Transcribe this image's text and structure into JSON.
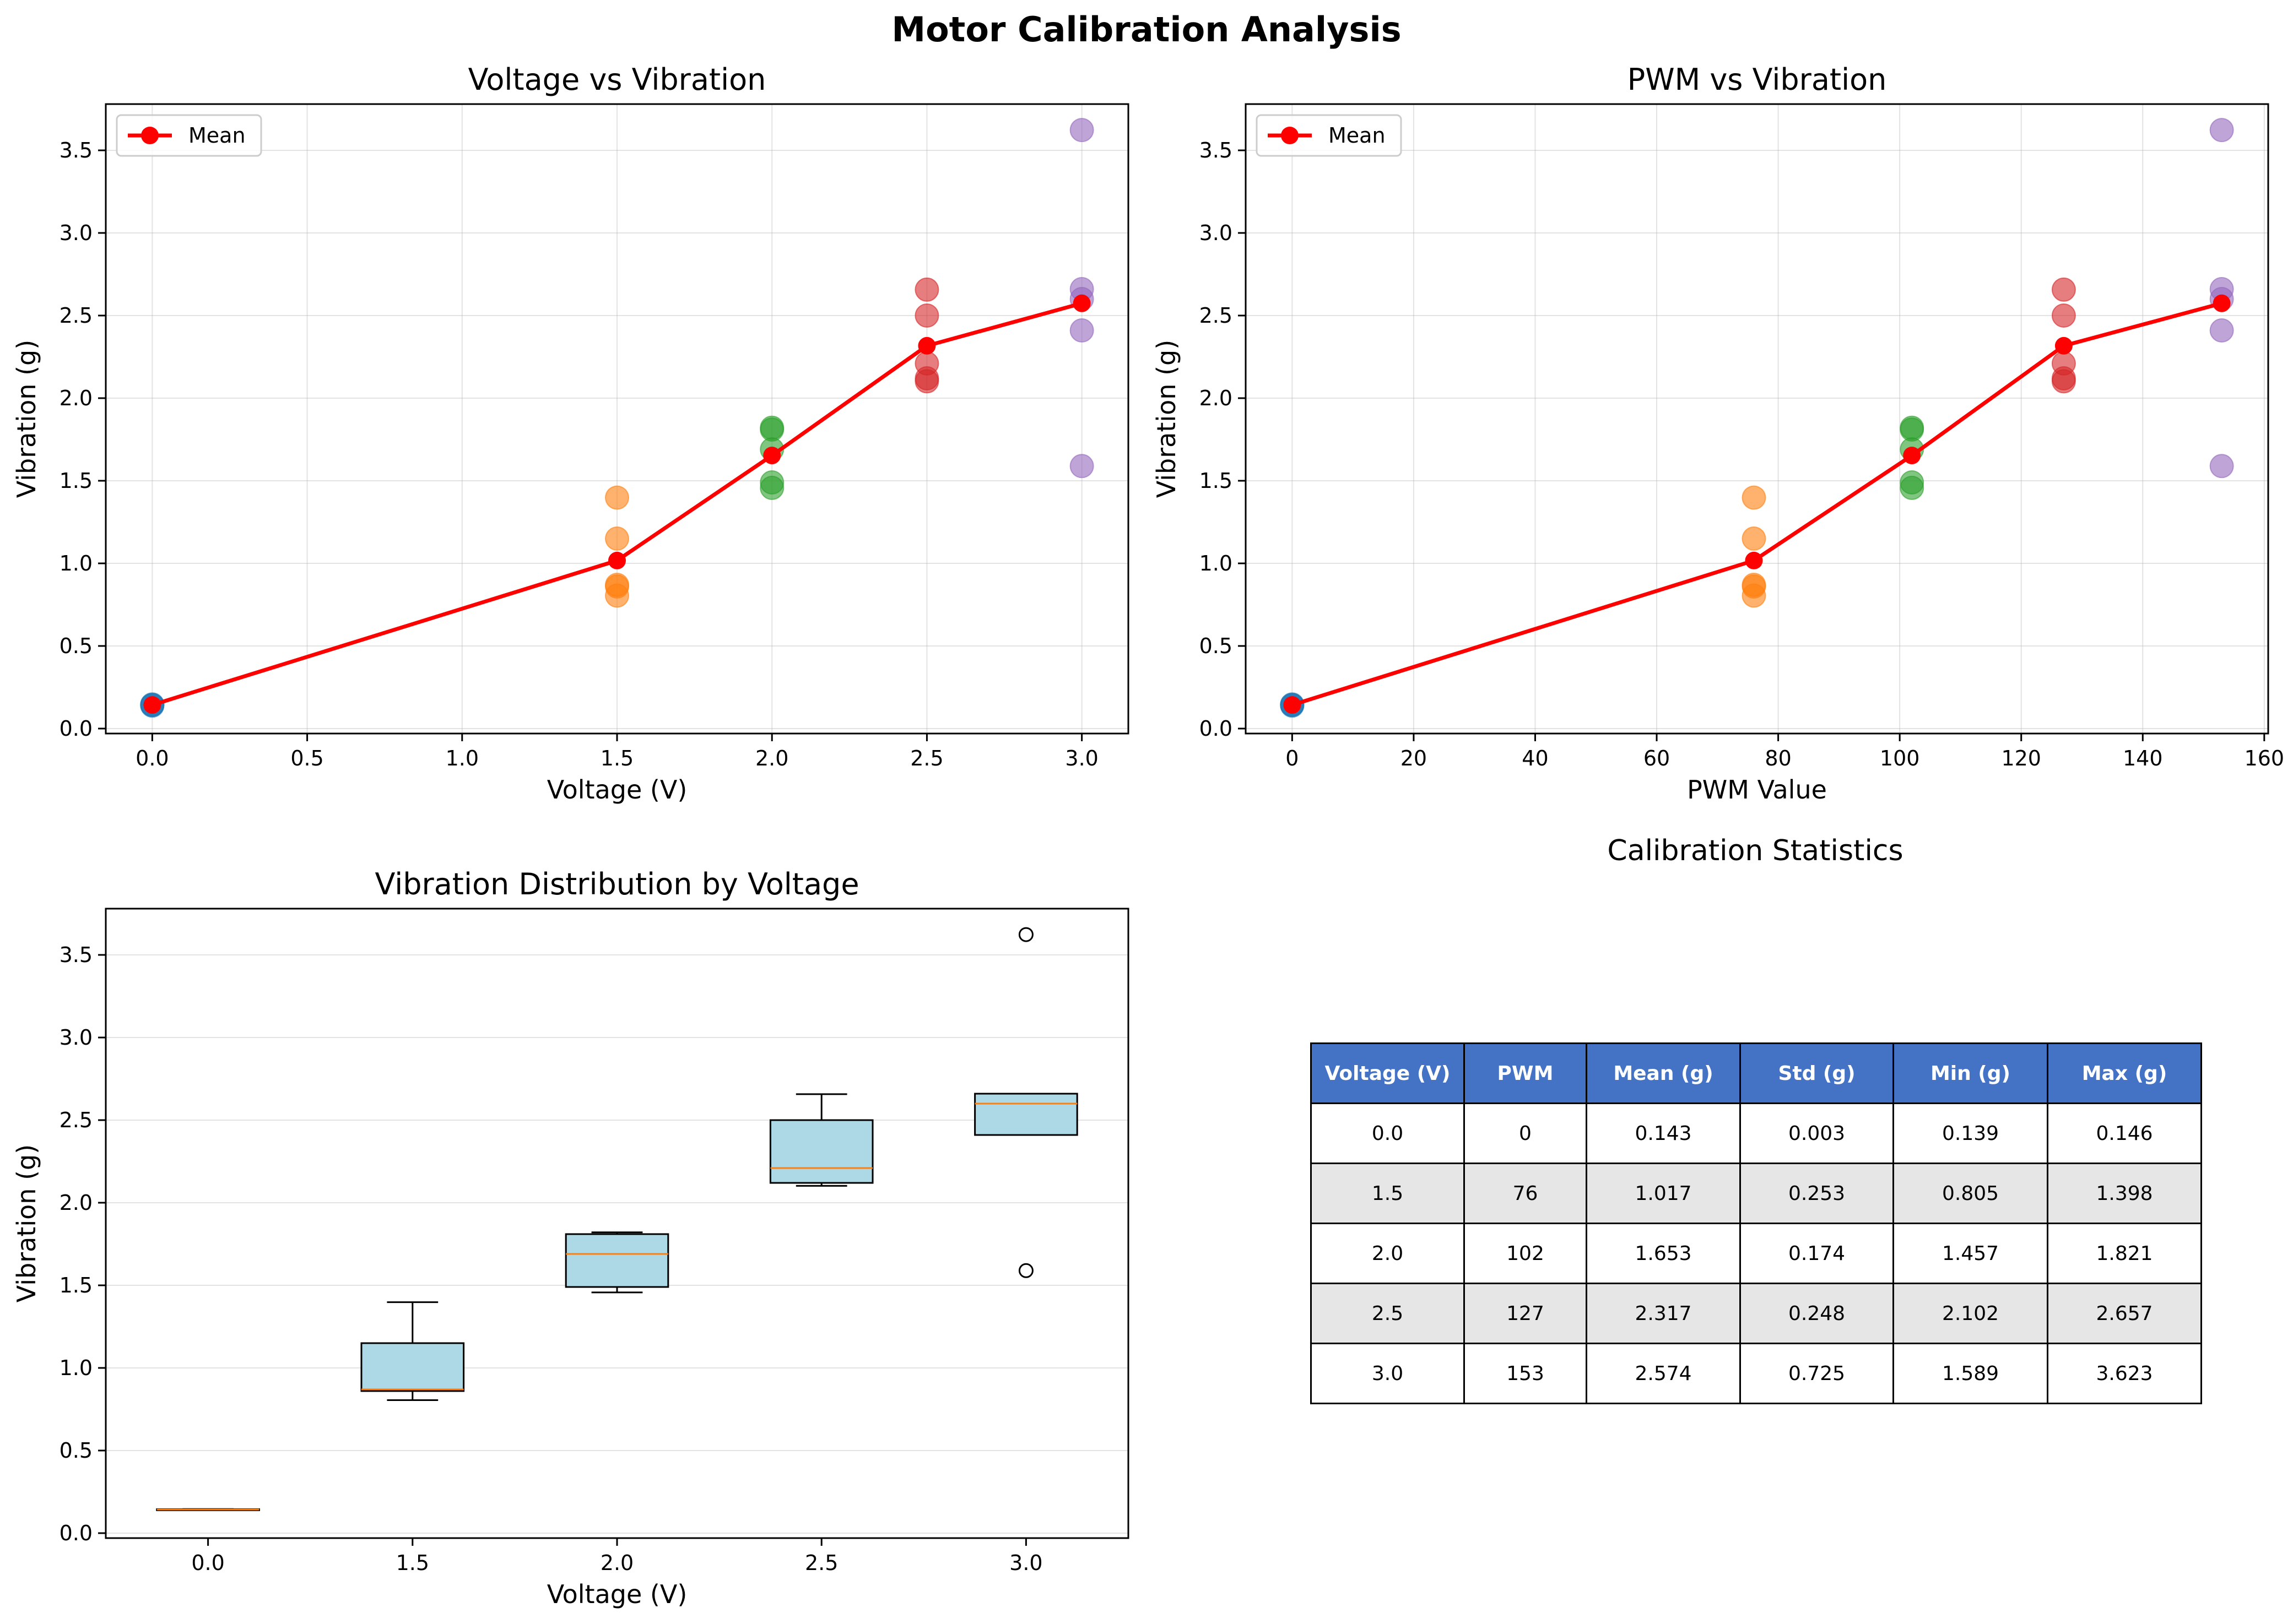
{
  "suptitle": "Motor Calibration Analysis",
  "colors": {
    "v0": "#1f77b4",
    "v1.5": "#ff7f0e",
    "v2": "#2ca02c",
    "v2.5": "#d62728",
    "v3": "#9467bd",
    "mean": "#ff0000",
    "box_fill": "#add8e6",
    "median": "#ff7f0e",
    "header_bg": "#4472c4"
  },
  "chart_data": [
    {
      "type": "scatter",
      "title": "Voltage vs Vibration",
      "xlabel": "Voltage (V)",
      "ylabel": "Vibration (g)",
      "xlim": [
        -0.15,
        3.15
      ],
      "ylim": [
        -0.03,
        3.78
      ],
      "xticks": [
        "0.0",
        "0.5",
        "1.0",
        "1.5",
        "2.0",
        "2.5",
        "3.0"
      ],
      "xtick_values": [
        0,
        0.5,
        1,
        1.5,
        2,
        2.5,
        3
      ],
      "yticks": [
        "0.0",
        "0.5",
        "1.0",
        "1.5",
        "2.0",
        "2.5",
        "3.0",
        "3.5"
      ],
      "ytick_values": [
        0,
        0.5,
        1,
        1.5,
        2,
        2.5,
        3,
        3.5
      ],
      "grid": true,
      "legend": {
        "position": "upper-left",
        "entries": [
          "Mean"
        ]
      },
      "series": [
        {
          "x": 0,
          "values": [
            0.139,
            0.143,
            0.146
          ]
        },
        {
          "x": 1.5,
          "values": [
            0.805,
            0.86,
            0.87,
            1.15,
            1.398
          ]
        },
        {
          "x": 2,
          "values": [
            1.457,
            1.49,
            1.69,
            1.81,
            1.821
          ]
        },
        {
          "x": 2.5,
          "values": [
            2.102,
            2.12,
            2.21,
            2.5,
            2.657
          ]
        },
        {
          "x": 3,
          "values": [
            1.589,
            2.41,
            2.6,
            2.66,
            3.623
          ]
        }
      ],
      "mean_line": {
        "name": "Mean",
        "x": [
          0,
          1.5,
          2,
          2.5,
          3
        ],
        "y": [
          0.143,
          1.017,
          1.653,
          2.317,
          2.574
        ]
      }
    },
    {
      "type": "scatter",
      "title": "PWM vs Vibration",
      "xlabel": "PWM Value",
      "ylabel": "Vibration (g)",
      "xlim": [
        -7.65,
        160.65
      ],
      "ylim": [
        -0.03,
        3.78
      ],
      "xticks": [
        "0",
        "20",
        "40",
        "60",
        "80",
        "100",
        "120",
        "140",
        "160"
      ],
      "xtick_values": [
        0,
        20,
        40,
        60,
        80,
        100,
        120,
        140,
        160
      ],
      "yticks": [
        "0.0",
        "0.5",
        "1.0",
        "1.5",
        "2.0",
        "2.5",
        "3.0",
        "3.5"
      ],
      "ytick_values": [
        0,
        0.5,
        1,
        1.5,
        2,
        2.5,
        3,
        3.5
      ],
      "grid": true,
      "legend": {
        "position": "upper-left",
        "entries": [
          "Mean"
        ]
      },
      "series": [
        {
          "x": 0,
          "values": [
            0.139,
            0.143,
            0.146
          ]
        },
        {
          "x": 76,
          "values": [
            0.805,
            0.86,
            0.87,
            1.15,
            1.398
          ]
        },
        {
          "x": 102,
          "values": [
            1.457,
            1.49,
            1.69,
            1.81,
            1.821
          ]
        },
        {
          "x": 127,
          "values": [
            2.102,
            2.12,
            2.21,
            2.5,
            2.657
          ]
        },
        {
          "x": 153,
          "values": [
            1.589,
            2.41,
            2.6,
            2.66,
            3.623
          ]
        }
      ],
      "mean_line": {
        "name": "Mean",
        "x": [
          0,
          76,
          102,
          127,
          153
        ],
        "y": [
          0.143,
          1.017,
          1.653,
          2.317,
          2.574
        ]
      }
    },
    {
      "type": "box",
      "title": "Vibration Distribution by Voltage",
      "xlabel": "Voltage (V)",
      "ylabel": "Vibration (g)",
      "ylim": [
        -0.03,
        3.78
      ],
      "categories": [
        "0.0",
        "1.5",
        "2.0",
        "2.5",
        "3.0"
      ],
      "yticks": [
        "0.0",
        "0.5",
        "1.0",
        "1.5",
        "2.0",
        "2.5",
        "3.0",
        "3.5"
      ],
      "ytick_values": [
        0,
        0.5,
        1,
        1.5,
        2,
        2.5,
        3,
        3.5
      ],
      "grid": "y",
      "boxes": [
        {
          "whisker_low": 0.139,
          "q1": 0.141,
          "median": 0.143,
          "q3": 0.145,
          "whisker_high": 0.146,
          "outliers": []
        },
        {
          "whisker_low": 0.805,
          "q1": 0.86,
          "median": 0.87,
          "q3": 1.15,
          "whisker_high": 1.398,
          "outliers": []
        },
        {
          "whisker_low": 1.457,
          "q1": 1.49,
          "median": 1.69,
          "q3": 1.81,
          "whisker_high": 1.821,
          "outliers": []
        },
        {
          "whisker_low": 2.102,
          "q1": 2.12,
          "median": 2.21,
          "q3": 2.5,
          "whisker_high": 2.657,
          "outliers": []
        },
        {
          "whisker_low": 2.41,
          "q1": 2.41,
          "median": 2.6,
          "q3": 2.66,
          "whisker_high": 2.66,
          "outliers": [
            3.623,
            1.589
          ]
        }
      ]
    },
    {
      "type": "table",
      "title": "Calibration Statistics",
      "columns": [
        "Voltage (V)",
        "PWM",
        "Mean (g)",
        "Std (g)",
        "Min (g)",
        "Max (g)"
      ],
      "rows": [
        [
          "0.0",
          "0",
          "0.143",
          "0.003",
          "0.139",
          "0.146"
        ],
        [
          "1.5",
          "76",
          "1.017",
          "0.253",
          "0.805",
          "1.398"
        ],
        [
          "2.0",
          "102",
          "1.653",
          "0.174",
          "1.457",
          "1.821"
        ],
        [
          "2.5",
          "127",
          "2.317",
          "0.248",
          "2.102",
          "2.657"
        ],
        [
          "3.0",
          "153",
          "2.574",
          "0.725",
          "1.589",
          "3.623"
        ]
      ]
    }
  ]
}
